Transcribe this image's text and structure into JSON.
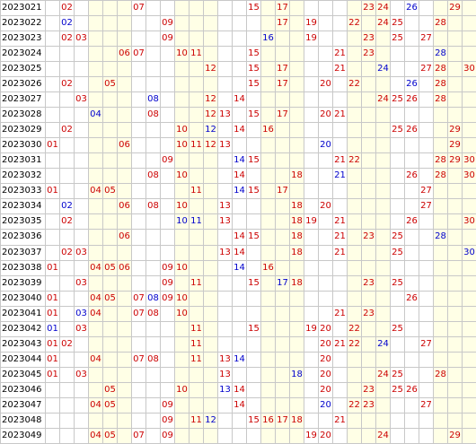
{
  "colors": {
    "front": "#cc0000",
    "back": "#0000cc",
    "shade": "#ffffe6",
    "grid": "#c8c8c8"
  },
  "shaded_columns": [
    4,
    5,
    6,
    10,
    11,
    12,
    16,
    17,
    18,
    22,
    23,
    24,
    28,
    29,
    30
  ],
  "rows": [
    {
      "period": "2023021",
      "red": [
        "02",
        "07",
        "15",
        "17",
        "23",
        "24",
        "29"
      ],
      "blue": [
        "26"
      ]
    },
    {
      "period": "2023022",
      "red": [
        "09",
        "17",
        "19",
        "22",
        "24",
        "25",
        "28"
      ],
      "blue": [
        "02"
      ]
    },
    {
      "period": "2023023",
      "red": [
        "02",
        "03",
        "09",
        "19",
        "23",
        "25",
        "27"
      ],
      "blue": [
        "16"
      ]
    },
    {
      "period": "2023024",
      "red": [
        "06",
        "07",
        "10",
        "11",
        "15",
        "21",
        "23"
      ],
      "blue": [
        "28"
      ]
    },
    {
      "period": "2023025",
      "red": [
        "12",
        "15",
        "17",
        "21",
        "27",
        "28",
        "30"
      ],
      "blue": [
        "24"
      ]
    },
    {
      "period": "2023026",
      "red": [
        "02",
        "05",
        "15",
        "17",
        "20",
        "22",
        "28"
      ],
      "blue": [
        "26"
      ]
    },
    {
      "period": "2023027",
      "red": [
        "03",
        "12",
        "14",
        "24",
        "25",
        "26",
        "28"
      ],
      "blue": [
        "08"
      ]
    },
    {
      "period": "2023028",
      "red": [
        "08",
        "12",
        "13",
        "15",
        "17",
        "20",
        "21"
      ],
      "blue": [
        "04"
      ]
    },
    {
      "period": "2023029",
      "red": [
        "02",
        "10",
        "14",
        "16",
        "25",
        "26",
        "29"
      ],
      "blue": [
        "12"
      ]
    },
    {
      "period": "2023030",
      "red": [
        "01",
        "06",
        "10",
        "11",
        "12",
        "13",
        "29"
      ],
      "blue": [
        "20"
      ]
    },
    {
      "period": "2023031",
      "red": [
        "09",
        "15",
        "21",
        "22",
        "28",
        "29",
        "30"
      ],
      "blue": [
        "14"
      ]
    },
    {
      "period": "2023032",
      "red": [
        "08",
        "10",
        "14",
        "18",
        "26",
        "28",
        "30"
      ],
      "blue": [
        "21"
      ]
    },
    {
      "period": "2023033",
      "red": [
        "01",
        "04",
        "05",
        "11",
        "15",
        "17",
        "27"
      ],
      "blue": [
        "14"
      ]
    },
    {
      "period": "2023034",
      "red": [
        "06",
        "08",
        "10",
        "13",
        "18",
        "20",
        "27"
      ],
      "blue": [
        "02"
      ]
    },
    {
      "period": "2023035",
      "red": [
        "02",
        "13",
        "18",
        "19",
        "21",
        "26",
        "30"
      ],
      "blue": [
        "10",
        "11"
      ]
    },
    {
      "period": "2023036",
      "red": [
        "06",
        "14",
        "15",
        "18",
        "21",
        "23",
        "25"
      ],
      "blue": [
        "28"
      ]
    },
    {
      "period": "2023037",
      "red": [
        "02",
        "03",
        "13",
        "14",
        "18",
        "21",
        "25"
      ],
      "blue": [
        "30"
      ]
    },
    {
      "period": "2023038",
      "red": [
        "01",
        "04",
        "05",
        "06",
        "09",
        "10",
        "16"
      ],
      "blue": [
        "14"
      ]
    },
    {
      "period": "2023039",
      "red": [
        "03",
        "09",
        "11",
        "15",
        "18",
        "23",
        "25"
      ],
      "blue": [
        "17"
      ]
    },
    {
      "period": "2023040",
      "red": [
        "01",
        "04",
        "05",
        "07",
        "09",
        "10",
        "26"
      ],
      "blue": [
        "08"
      ]
    },
    {
      "period": "2023041",
      "red": [
        "01",
        "04",
        "07",
        "08",
        "10",
        "21",
        "23"
      ],
      "blue": [
        "03"
      ]
    },
    {
      "period": "2023042",
      "red": [
        "03",
        "11",
        "15",
        "19",
        "20",
        "22",
        "25"
      ],
      "blue": [
        "01"
      ]
    },
    {
      "period": "2023043",
      "red": [
        "01",
        "02",
        "11",
        "20",
        "21",
        "22",
        "27"
      ],
      "blue": [
        "24"
      ]
    },
    {
      "period": "2023044",
      "red": [
        "01",
        "04",
        "07",
        "08",
        "11",
        "13",
        "20"
      ],
      "blue": [
        "14"
      ]
    },
    {
      "period": "2023045",
      "red": [
        "01",
        "03",
        "13",
        "20",
        "24",
        "25",
        "28"
      ],
      "blue": [
        "18"
      ]
    },
    {
      "period": "2023046",
      "red": [
        "05",
        "10",
        "14",
        "20",
        "23",
        "25",
        "26"
      ],
      "blue": [
        "13"
      ]
    },
    {
      "period": "2023047",
      "red": [
        "04",
        "05",
        "09",
        "14",
        "22",
        "23",
        "27"
      ],
      "blue": [
        "20"
      ]
    },
    {
      "period": "2023048",
      "red": [
        "09",
        "11",
        "15",
        "16",
        "17",
        "18",
        "21"
      ],
      "blue": [
        "12"
      ]
    },
    {
      "period": "2023049",
      "red": [
        "04",
        "05",
        "07",
        "09",
        "19",
        "20",
        "24",
        "29"
      ],
      "blue": []
    }
  ]
}
